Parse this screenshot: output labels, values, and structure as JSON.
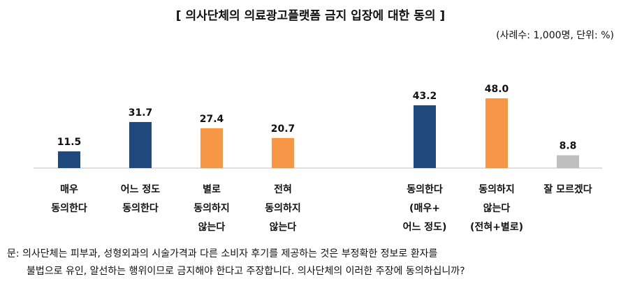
{
  "title": "[ 의사단체의 의료광고플랫폼 금지 입장에 대한 동의 ]",
  "note": "(사례수: 1,000명, 단위: %)",
  "question": {
    "line1": "문: 의사단체는 피부과, 성형외과의 시술가격과 다른 소비자 후기를 제공하는 것은 부정확한 정보로 환자를",
    "line2": "불법으로 유인, 알선하는 행위이므로 금지해야 한다고 주장합니다. 의사단체의 이러한 주장에 동의하십니까?"
  },
  "colors": {
    "agree": "#1F497D",
    "disagree": "#F79646",
    "unknown": "#BFBFBF",
    "axis": "#BFBFBF"
  },
  "chart_data": {
    "type": "bar",
    "categories": [
      [
        "매우",
        "동의한다"
      ],
      [
        "어느 정도",
        "동의한다"
      ],
      [
        "별로",
        "동의하지",
        "않는다"
      ],
      [
        "전혀",
        "동의하지",
        "않는다"
      ],
      [
        "동의한다",
        "(매우+",
        "어느 정도)"
      ],
      [
        "동의하지",
        "않는다",
        "(전혀+별로)"
      ],
      [
        "잘 모르겠다"
      ]
    ],
    "values": [
      11.5,
      31.7,
      27.4,
      20.7,
      43.2,
      48.0,
      8.8
    ],
    "value_labels": [
      "11.5",
      "31.7",
      "27.4",
      "20.7",
      "43.2",
      "48.0",
      "8.8"
    ],
    "bar_colors": [
      "agree",
      "agree",
      "disagree",
      "disagree",
      "agree",
      "disagree",
      "unknown"
    ],
    "title": "[ 의사단체의 의료광고플랫폼 금지 입장에 대한 동의 ]",
    "ylim": [
      0,
      48
    ],
    "grid": false,
    "legend": "none"
  }
}
